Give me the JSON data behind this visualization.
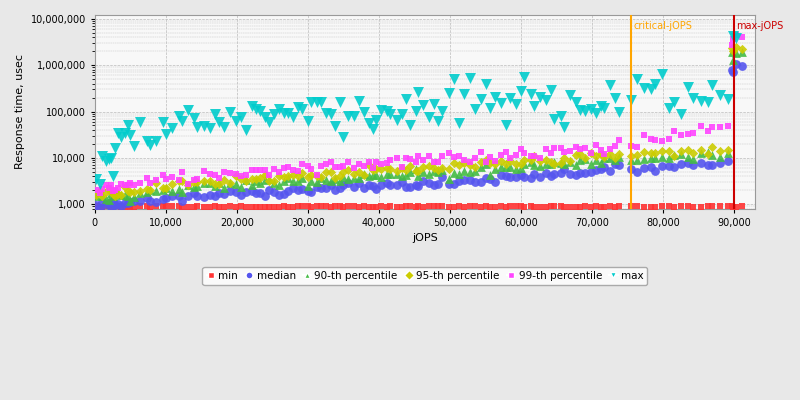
{
  "xlabel": "jOPS",
  "ylabel": "Response time, usec",
  "xlim": [
    0,
    93000
  ],
  "ylim_log": [
    800,
    12000000
  ],
  "critical_jops": 75500,
  "max_jops": 90000,
  "critical_label": "critical-jOPS",
  "max_label": "max-jOPS",
  "critical_color": "#FFA500",
  "max_color": "#CC0000",
  "bg_color": "#E8E8E8",
  "plot_bg_color": "#F8F8F8",
  "grid_color": "#BBBBBB",
  "series": {
    "min": {
      "color": "#FF3333",
      "marker": "s",
      "ms": 3
    },
    "median": {
      "color": "#5555EE",
      "marker": "o",
      "ms": 4
    },
    "p90": {
      "color": "#44BB44",
      "marker": "^",
      "ms": 4
    },
    "p95": {
      "color": "#CCCC00",
      "marker": "D",
      "ms": 3
    },
    "p99": {
      "color": "#FF44FF",
      "marker": "s",
      "ms": 3
    },
    "max": {
      "color": "#00CCCC",
      "marker": "v",
      "ms": 5
    }
  },
  "legend_labels": [
    "min",
    "median",
    "90-th percentile",
    "95-th percentile",
    "99-th percentile",
    "max"
  ]
}
